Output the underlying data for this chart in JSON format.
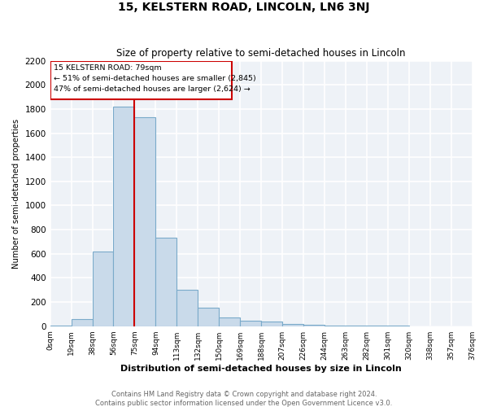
{
  "title": "15, KELSTERN ROAD, LINCOLN, LN6 3NJ",
  "subtitle": "Size of property relative to semi-detached houses in Lincoln",
  "xlabel": "Distribution of semi-detached houses by size in Lincoln",
  "ylabel": "Number of semi-detached properties",
  "bar_color": "#c9daea",
  "bar_edge_color": "#7aaaca",
  "property_label": "15 KELSTERN ROAD: 79sqm",
  "smaller_pct": 51,
  "smaller_count": 2845,
  "larger_pct": 47,
  "larger_count": 2624,
  "bin_labels": [
    "0sqm",
    "19sqm",
    "38sqm",
    "56sqm",
    "75sqm",
    "94sqm",
    "113sqm",
    "132sqm",
    "150sqm",
    "169sqm",
    "188sqm",
    "207sqm",
    "226sqm",
    "244sqm",
    "263sqm",
    "282sqm",
    "301sqm",
    "320sqm",
    "338sqm",
    "357sqm",
    "376sqm"
  ],
  "bar_heights": [
    5,
    60,
    620,
    1820,
    1730,
    730,
    300,
    150,
    75,
    45,
    40,
    20,
    10,
    8,
    5,
    3,
    2,
    1,
    0,
    0
  ],
  "n_bins": 20,
  "ylim": [
    0,
    2200
  ],
  "yticks": [
    0,
    200,
    400,
    600,
    800,
    1000,
    1200,
    1400,
    1600,
    1800,
    2000,
    2200
  ],
  "vline_bin": 4,
  "footer_line1": "Contains HM Land Registry data © Crown copyright and database right 2024.",
  "footer_line2": "Contains public sector information licensed under the Open Government Licence v3.0.",
  "background_color": "#eef2f7",
  "grid_color": "#ffffff",
  "box_edge_color": "#cc0000",
  "vline_color": "#cc0000"
}
